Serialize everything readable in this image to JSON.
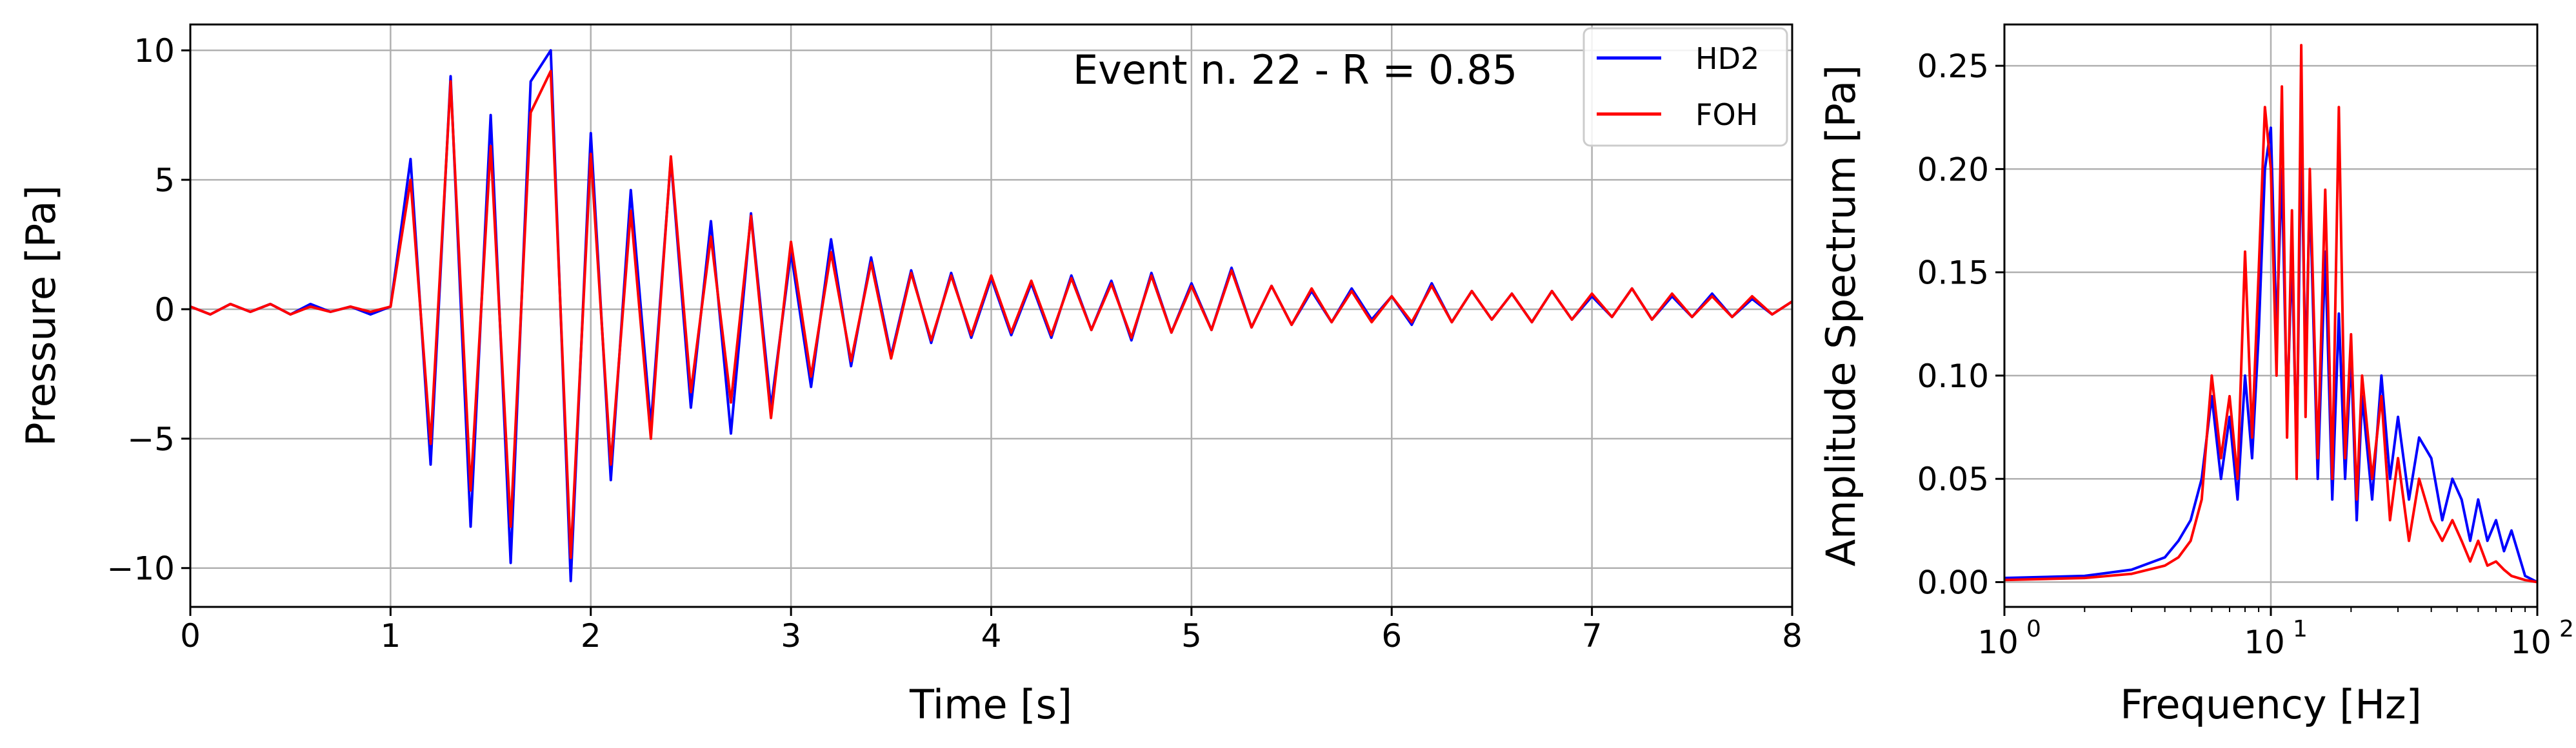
{
  "chart_data": [
    {
      "type": "line",
      "annotation": "Event n. 22 - R = 0.85",
      "xlabel": "Time [s]",
      "ylabel": "Pressure [Pa]",
      "xlim": [
        0,
        8
      ],
      "ylim": [
        -11.5,
        11
      ],
      "x_ticks": [
        0,
        1,
        2,
        3,
        4,
        5,
        6,
        7,
        8
      ],
      "x_tick_labels": [
        "0",
        "1",
        "2",
        "3",
        "4",
        "5",
        "6",
        "7",
        "8"
      ],
      "y_ticks": [
        -10,
        -5,
        0,
        5,
        10
      ],
      "y_tick_labels": [
        "−10",
        "−5",
        "0",
        "5",
        "10"
      ],
      "grid": true,
      "legend_position": "top-right",
      "x_step": 0.1,
      "series": [
        {
          "name": "HD2",
          "color": "#0000ff",
          "values": [
            0.1,
            -0.2,
            0.2,
            -0.1,
            0.2,
            -0.2,
            0.2,
            -0.1,
            0.1,
            -0.2,
            0.1,
            5.8,
            -6.0,
            9.0,
            -8.4,
            7.5,
            -9.8,
            8.8,
            10.0,
            -10.5,
            6.8,
            -6.6,
            4.6,
            -4.5,
            5.8,
            -3.8,
            3.4,
            -4.8,
            3.7,
            -3.8,
            2.2,
            -3.0,
            2.7,
            -2.2,
            2.0,
            -1.8,
            1.5,
            -1.3,
            1.4,
            -1.1,
            1.2,
            -1.0,
            1.0,
            -1.1,
            1.3,
            -0.8,
            1.1,
            -1.2,
            1.4,
            -0.9,
            1.0,
            -0.8,
            1.6,
            -0.7,
            0.9,
            -0.6,
            0.7,
            -0.5,
            0.8,
            -0.4,
            0.5,
            -0.6,
            1.0,
            -0.5,
            0.7,
            -0.4,
            0.6,
            -0.5,
            0.7,
            -0.4,
            0.5,
            -0.3,
            0.8,
            -0.4,
            0.5,
            -0.3,
            0.6,
            -0.3,
            0.4,
            -0.2,
            0.3
          ]
        },
        {
          "name": "FOH",
          "color": "#ff0000",
          "values": [
            0.1,
            -0.2,
            0.2,
            -0.1,
            0.2,
            -0.2,
            0.1,
            -0.1,
            0.1,
            -0.1,
            0.1,
            5.0,
            -5.2,
            8.8,
            -7.0,
            6.3,
            -8.4,
            7.6,
            9.2,
            -9.6,
            6.0,
            -6.0,
            3.8,
            -5.0,
            5.9,
            -3.2,
            2.8,
            -3.6,
            3.6,
            -4.2,
            2.6,
            -2.6,
            2.2,
            -2.0,
            1.8,
            -1.9,
            1.4,
            -1.2,
            1.3,
            -1.0,
            1.3,
            -0.9,
            1.1,
            -1.0,
            1.2,
            -0.8,
            1.0,
            -1.1,
            1.3,
            -0.9,
            0.9,
            -0.8,
            1.5,
            -0.7,
            0.9,
            -0.6,
            0.8,
            -0.5,
            0.7,
            -0.5,
            0.5,
            -0.5,
            0.9,
            -0.5,
            0.7,
            -0.4,
            0.6,
            -0.5,
            0.7,
            -0.4,
            0.6,
            -0.3,
            0.8,
            -0.4,
            0.6,
            -0.3,
            0.5,
            -0.3,
            0.5,
            -0.2,
            0.3
          ]
        }
      ]
    },
    {
      "type": "line",
      "xlabel": "Frequency [Hz]",
      "ylabel": "Amplitude Spectrum [Pa]",
      "x_scale": "log",
      "xlim": [
        1,
        100
      ],
      "ylim": [
        -0.012,
        0.27
      ],
      "x_ticks": [
        1,
        10,
        100
      ],
      "x_tick_labels": [
        [
          "10",
          "0"
        ],
        [
          "10",
          "1"
        ],
        [
          "10",
          "2"
        ]
      ],
      "y_ticks": [
        0.0,
        0.05,
        0.1,
        0.15,
        0.2,
        0.25
      ],
      "y_tick_labels": [
        "0.00",
        "0.05",
        "0.10",
        "0.15",
        "0.20",
        "0.25"
      ],
      "grid": true,
      "series": [
        {
          "name": "HD2",
          "color": "#0000ff",
          "x": [
            1,
            2,
            3,
            4,
            4.5,
            5,
            5.5,
            6,
            6.5,
            7,
            7.5,
            8,
            8.5,
            9,
            9.5,
            10,
            10.5,
            11,
            11.5,
            12,
            12.5,
            13,
            13.5,
            14,
            15,
            16,
            17,
            18,
            19,
            20,
            21,
            22,
            24,
            26,
            28,
            30,
            33,
            36,
            40,
            44,
            48,
            52,
            56,
            60,
            65,
            70,
            75,
            80,
            90,
            100
          ],
          "y": [
            0.002,
            0.003,
            0.006,
            0.012,
            0.02,
            0.03,
            0.05,
            0.09,
            0.05,
            0.08,
            0.04,
            0.1,
            0.06,
            0.12,
            0.2,
            0.22,
            0.12,
            0.2,
            0.08,
            0.16,
            0.06,
            0.22,
            0.1,
            0.19,
            0.05,
            0.16,
            0.04,
            0.13,
            0.05,
            0.11,
            0.03,
            0.09,
            0.04,
            0.1,
            0.05,
            0.08,
            0.04,
            0.07,
            0.06,
            0.03,
            0.05,
            0.04,
            0.02,
            0.04,
            0.02,
            0.03,
            0.015,
            0.025,
            0.003,
            0.0
          ]
        },
        {
          "name": "FOH",
          "color": "#ff0000",
          "x": [
            1,
            2,
            3,
            4,
            4.5,
            5,
            5.5,
            6,
            6.5,
            7,
            7.5,
            8,
            8.5,
            9,
            9.5,
            10,
            10.5,
            11,
            11.5,
            12,
            12.5,
            13,
            13.5,
            14,
            15,
            16,
            17,
            18,
            19,
            20,
            21,
            22,
            24,
            26,
            28,
            30,
            33,
            36,
            40,
            44,
            48,
            52,
            56,
            60,
            65,
            70,
            75,
            80,
            90,
            100
          ],
          "y": [
            0.001,
            0.002,
            0.004,
            0.008,
            0.012,
            0.02,
            0.04,
            0.1,
            0.06,
            0.09,
            0.05,
            0.16,
            0.07,
            0.15,
            0.23,
            0.2,
            0.1,
            0.24,
            0.07,
            0.18,
            0.05,
            0.26,
            0.08,
            0.2,
            0.06,
            0.19,
            0.05,
            0.23,
            0.06,
            0.12,
            0.04,
            0.1,
            0.05,
            0.09,
            0.03,
            0.06,
            0.02,
            0.05,
            0.03,
            0.02,
            0.03,
            0.02,
            0.01,
            0.02,
            0.008,
            0.01,
            0.006,
            0.003,
            0.001,
            0.0
          ]
        }
      ]
    }
  ]
}
